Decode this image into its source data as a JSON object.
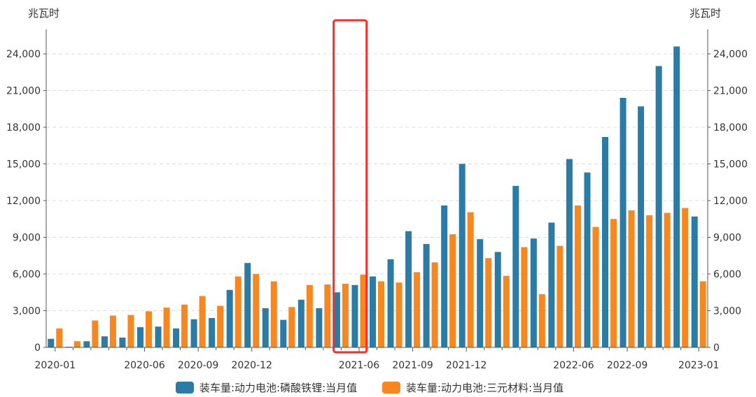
{
  "chart_data": {
    "type": "bar",
    "title": "",
    "unit_left": "兆瓦时",
    "unit_right": "兆瓦时",
    "ylim": [
      0,
      26000
    ],
    "yticks": [
      0,
      3000,
      6000,
      9000,
      12000,
      15000,
      18000,
      21000,
      24000
    ],
    "ytick_labels": [
      "0",
      "3,000",
      "6,000",
      "9,000",
      "12,000",
      "15,000",
      "18,000",
      "21,000",
      "24,000"
    ],
    "grid": true,
    "legend_position": "bottom",
    "categories": [
      "2020-01",
      "2020-02",
      "2020-03",
      "2020-04",
      "2020-05",
      "2020-06",
      "2020-07",
      "2020-08",
      "2020-09",
      "2020-10",
      "2020-11",
      "2020-12",
      "2021-01",
      "2021-02",
      "2021-03",
      "2021-04",
      "2021-05",
      "2021-06",
      "2021-07",
      "2021-08",
      "2021-09",
      "2021-10",
      "2021-11",
      "2021-12",
      "2022-01",
      "2022-02",
      "2022-03",
      "2022-04",
      "2022-05",
      "2022-06",
      "2022-07",
      "2022-08",
      "2022-09",
      "2022-10",
      "2022-11",
      "2022-12",
      "2023-01"
    ],
    "x_tick_labels": [
      "2020-01",
      "2020-06",
      "2020-09",
      "2020-12",
      "2021-06",
      "2021-09",
      "2021-12",
      "2022-06",
      "2022-09",
      "2023-01"
    ],
    "series": [
      {
        "name": "装车量:动力电池:磷酸铁锂:当月值",
        "color": "#2a7ba5",
        "values": [
          700,
          50,
          500,
          900,
          800,
          1650,
          1700,
          1550,
          2300,
          2400,
          4700,
          6900,
          3200,
          2250,
          3900,
          3200,
          4500,
          5100,
          5800,
          7200,
          9500,
          8450,
          11600,
          15000,
          8850,
          7800,
          13200,
          8900,
          10200,
          15400,
          14300,
          17200,
          20400,
          19700,
          23000,
          24600,
          10700
        ]
      },
      {
        "name": "装车量:动力电池:三元材料:当月值",
        "color": "#f7871e",
        "values": [
          1550,
          500,
          2200,
          2600,
          2650,
          2950,
          3250,
          3500,
          4200,
          3400,
          5800,
          6000,
          5400,
          3300,
          5100,
          5150,
          5200,
          5950,
          5400,
          5300,
          6150,
          6950,
          9250,
          11050,
          7300,
          5850,
          8200,
          4350,
          8300,
          11600,
          9850,
          10500,
          11200,
          10800,
          11000,
          11400,
          5400
        ]
      }
    ],
    "highlight_categories": [
      "2021-05",
      "2021-06"
    ],
    "highlight_color": "#ff2a2a"
  }
}
